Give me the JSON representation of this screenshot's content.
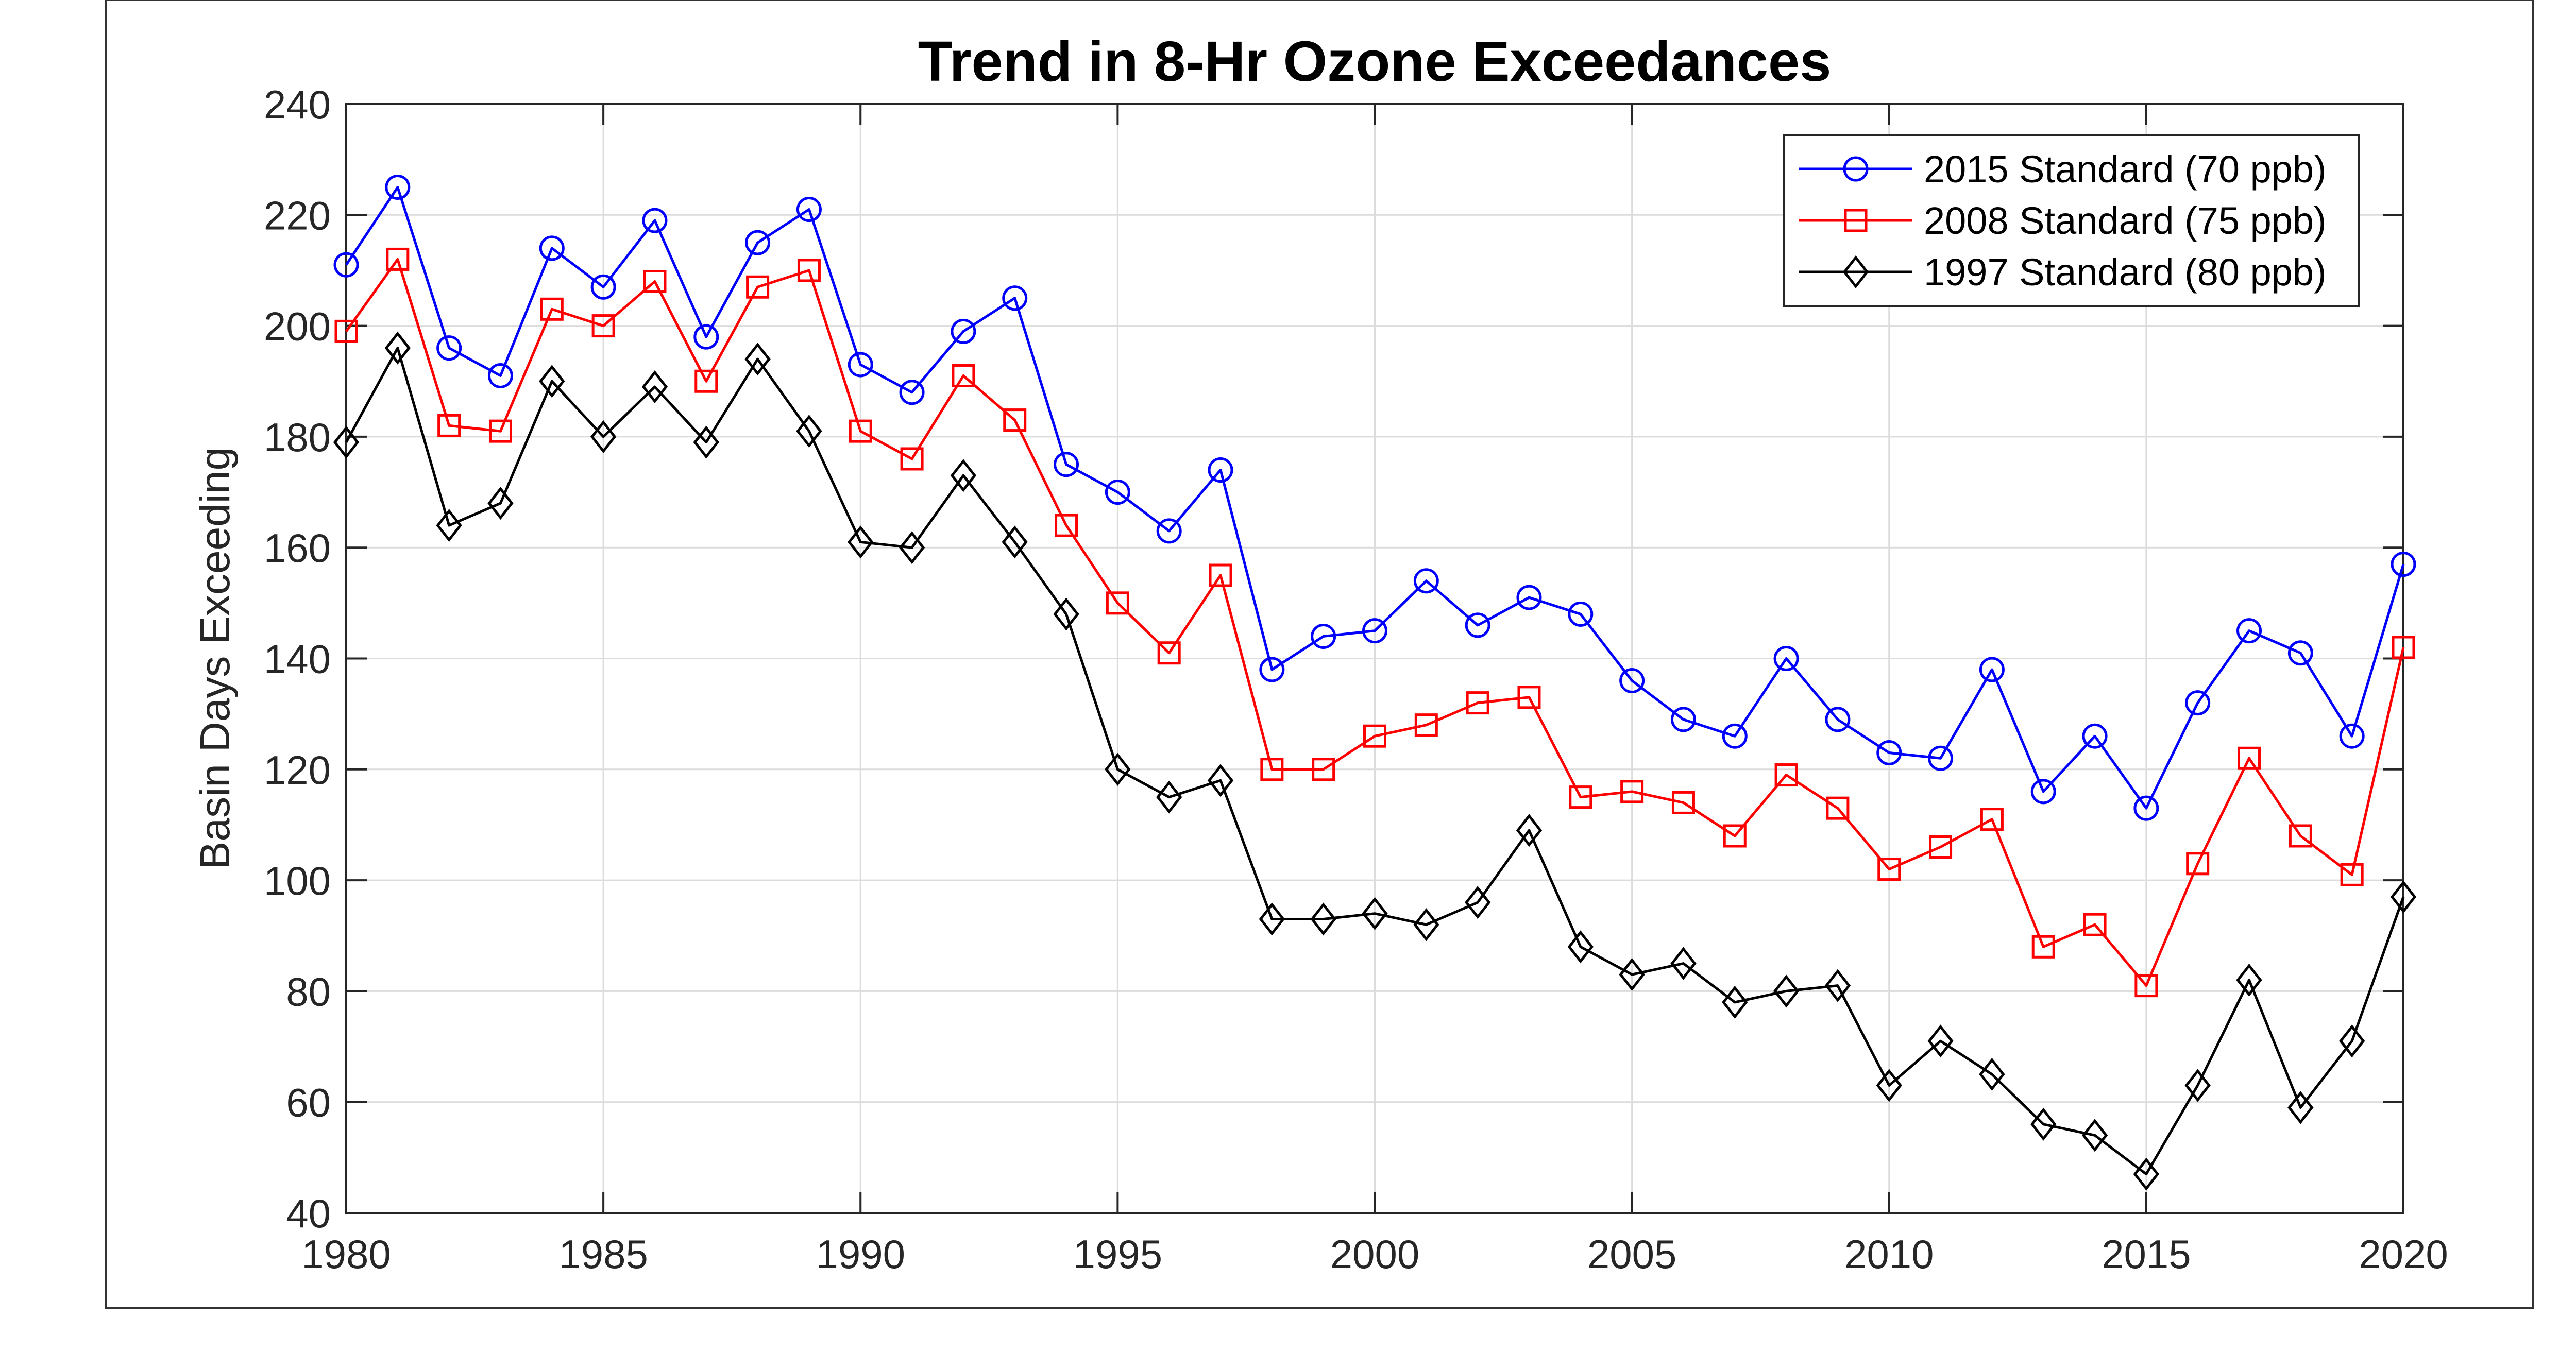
{
  "chart_data": {
    "type": "line",
    "title": "Trend in 8-Hr Ozone Exceedances",
    "xlabel": "",
    "ylabel": "Basin Days Exceeding",
    "xlim": [
      1980,
      2020
    ],
    "ylim": [
      40,
      240
    ],
    "xticks": [
      1980,
      1985,
      1990,
      1995,
      2000,
      2005,
      2010,
      2015,
      2020
    ],
    "yticks": [
      40,
      60,
      80,
      100,
      120,
      140,
      160,
      180,
      200,
      220,
      240
    ],
    "grid": true,
    "legend_position": "top-right",
    "x": [
      1980,
      1981,
      1982,
      1983,
      1984,
      1985,
      1986,
      1987,
      1988,
      1989,
      1990,
      1991,
      1992,
      1993,
      1994,
      1995,
      1996,
      1997,
      1998,
      1999,
      2000,
      2001,
      2002,
      2003,
      2004,
      2005,
      2006,
      2007,
      2008,
      2009,
      2010,
      2011,
      2012,
      2013,
      2014,
      2015,
      2016,
      2017,
      2018,
      2019,
      2020
    ],
    "series": [
      {
        "name": "2015 Standard (70 ppb)",
        "color": "#0000ff",
        "marker": "circle",
        "values": [
          211,
          225,
          196,
          191,
          214,
          207,
          219,
          198,
          215,
          221,
          193,
          188,
          199,
          205,
          175,
          170,
          163,
          174,
          138,
          144,
          145,
          154,
          146,
          151,
          148,
          136,
          129,
          126,
          140,
          129,
          123,
          122,
          138,
          116,
          126,
          113,
          132,
          145,
          141,
          126,
          157
        ]
      },
      {
        "name": "2008 Standard (75 ppb)",
        "color": "#ff0000",
        "marker": "square",
        "values": [
          199,
          212,
          182,
          181,
          203,
          200,
          208,
          190,
          207,
          210,
          181,
          176,
          191,
          183,
          164,
          150,
          141,
          155,
          120,
          120,
          126,
          128,
          132,
          133,
          115,
          116,
          114,
          108,
          119,
          113,
          102,
          106,
          111,
          88,
          92,
          81,
          103,
          122,
          108,
          101,
          142
        ]
      },
      {
        "name": "1997 Standard (80 ppb)",
        "color": "#000000",
        "marker": "diamond",
        "values": [
          179,
          196,
          164,
          168,
          190,
          180,
          189,
          179,
          194,
          181,
          161,
          160,
          173,
          161,
          148,
          120,
          115,
          118,
          93,
          93,
          94,
          92,
          96,
          109,
          88,
          83,
          85,
          78,
          80,
          81,
          63,
          71,
          65,
          56,
          54,
          47,
          63,
          82,
          59,
          71,
          97
        ]
      }
    ]
  }
}
